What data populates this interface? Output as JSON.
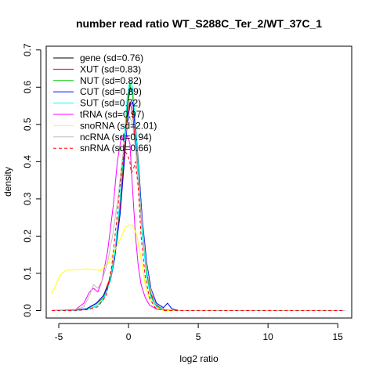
{
  "chart_data": {
    "type": "line",
    "title": "number read ratio WT_S288C_Ter_2/WT_37C_1",
    "xlabel": "log2 ratio",
    "ylabel": "density",
    "xlim": [
      -5.9,
      16.0
    ],
    "ylim": [
      -0.02,
      0.71
    ],
    "x_ticks": [
      -5,
      0,
      5,
      10,
      15
    ],
    "y_ticks": [
      0.0,
      0.1,
      0.2,
      0.3,
      0.4,
      0.5,
      0.6,
      0.7
    ],
    "grid": false,
    "legend_position": "top-left",
    "series": [
      {
        "name": "gene (sd=0.76)",
        "color": "#000000",
        "dash": "",
        "points": [
          [
            -5.5,
            0.0
          ],
          [
            -4.0,
            0.0
          ],
          [
            -3.0,
            0.003
          ],
          [
            -2.3,
            0.012
          ],
          [
            -1.8,
            0.03
          ],
          [
            -1.3,
            0.08
          ],
          [
            -1.0,
            0.14
          ],
          [
            -0.7,
            0.25
          ],
          [
            -0.4,
            0.39
          ],
          [
            -0.2,
            0.5
          ],
          [
            0.0,
            0.57
          ],
          [
            0.15,
            0.6
          ],
          [
            0.3,
            0.58
          ],
          [
            0.5,
            0.5
          ],
          [
            0.8,
            0.35
          ],
          [
            1.0,
            0.22
          ],
          [
            1.3,
            0.1
          ],
          [
            1.6,
            0.04
          ],
          [
            2.0,
            0.012
          ],
          [
            2.5,
            0.003
          ],
          [
            3.5,
            0.0
          ],
          [
            15.5,
            0.0
          ]
        ]
      },
      {
        "name": "XUT (sd=0.83)",
        "color": "#ff0000",
        "dash": "",
        "points": [
          [
            -5.5,
            0.0
          ],
          [
            -4.0,
            0.001
          ],
          [
            -3.0,
            0.005
          ],
          [
            -2.3,
            0.02
          ],
          [
            -1.8,
            0.04
          ],
          [
            -1.3,
            0.09
          ],
          [
            -1.0,
            0.15
          ],
          [
            -0.6,
            0.28
          ],
          [
            -0.3,
            0.42
          ],
          [
            -0.1,
            0.52
          ],
          [
            0.1,
            0.56
          ],
          [
            0.3,
            0.53
          ],
          [
            0.5,
            0.44
          ],
          [
            0.8,
            0.31
          ],
          [
            1.0,
            0.2
          ],
          [
            1.3,
            0.1
          ],
          [
            1.6,
            0.045
          ],
          [
            2.0,
            0.015
          ],
          [
            2.6,
            0.003
          ],
          [
            3.5,
            0.0
          ],
          [
            15.5,
            0.0
          ]
        ]
      },
      {
        "name": "NUT (sd=0.82)",
        "color": "#00cc00",
        "dash": "",
        "points": [
          [
            -5.5,
            0.0
          ],
          [
            -4.0,
            0.0
          ],
          [
            -3.0,
            0.004
          ],
          [
            -2.3,
            0.018
          ],
          [
            -1.8,
            0.035
          ],
          [
            -1.3,
            0.085
          ],
          [
            -1.0,
            0.15
          ],
          [
            -0.6,
            0.3
          ],
          [
            -0.3,
            0.45
          ],
          [
            -0.1,
            0.55
          ],
          [
            0.1,
            0.61
          ],
          [
            0.3,
            0.58
          ],
          [
            0.5,
            0.48
          ],
          [
            0.8,
            0.32
          ],
          [
            1.0,
            0.21
          ],
          [
            1.3,
            0.1
          ],
          [
            1.6,
            0.04
          ],
          [
            2.0,
            0.012
          ],
          [
            2.6,
            0.002
          ],
          [
            3.5,
            0.0
          ],
          [
            15.5,
            0.0
          ]
        ]
      },
      {
        "name": "CUT (sd=0.89)",
        "color": "#0000ff",
        "dash": "",
        "points": [
          [
            -5.5,
            0.0
          ],
          [
            -4.0,
            0.001
          ],
          [
            -3.0,
            0.005
          ],
          [
            -2.3,
            0.02
          ],
          [
            -1.8,
            0.04
          ],
          [
            -1.3,
            0.08
          ],
          [
            -1.0,
            0.14
          ],
          [
            -0.6,
            0.26
          ],
          [
            -0.3,
            0.4
          ],
          [
            -0.1,
            0.5
          ],
          [
            0.1,
            0.55
          ],
          [
            0.3,
            0.56
          ],
          [
            0.5,
            0.48
          ],
          [
            0.8,
            0.34
          ],
          [
            1.0,
            0.24
          ],
          [
            1.3,
            0.13
          ],
          [
            1.6,
            0.06
          ],
          [
            2.0,
            0.02
          ],
          [
            2.5,
            0.008
          ],
          [
            2.8,
            0.02
          ],
          [
            3.1,
            0.005
          ],
          [
            3.6,
            0.0
          ],
          [
            15.5,
            0.0
          ]
        ]
      },
      {
        "name": "SUT (sd=0.72)",
        "color": "#00ffff",
        "dash": "",
        "points": [
          [
            -5.5,
            0.0
          ],
          [
            -4.0,
            0.0
          ],
          [
            -3.0,
            0.003
          ],
          [
            -2.3,
            0.012
          ],
          [
            -1.8,
            0.03
          ],
          [
            -1.3,
            0.08
          ],
          [
            -1.0,
            0.15
          ],
          [
            -0.6,
            0.3
          ],
          [
            -0.3,
            0.46
          ],
          [
            -0.1,
            0.57
          ],
          [
            0.1,
            0.62
          ],
          [
            0.3,
            0.6
          ],
          [
            0.5,
            0.5
          ],
          [
            0.8,
            0.33
          ],
          [
            1.0,
            0.2
          ],
          [
            1.3,
            0.09
          ],
          [
            1.6,
            0.035
          ],
          [
            2.0,
            0.01
          ],
          [
            2.5,
            0.002
          ],
          [
            3.5,
            0.0
          ],
          [
            15.5,
            0.0
          ]
        ]
      },
      {
        "name": "tRNA (sd=0.97)",
        "color": "#ff00ff",
        "dash": "",
        "points": [
          [
            -5.5,
            0.0
          ],
          [
            -3.8,
            0.003
          ],
          [
            -3.2,
            0.02
          ],
          [
            -2.8,
            0.05
          ],
          [
            -2.5,
            0.06
          ],
          [
            -2.2,
            0.05
          ],
          [
            -1.9,
            0.08
          ],
          [
            -1.5,
            0.16
          ],
          [
            -1.1,
            0.28
          ],
          [
            -0.8,
            0.4
          ],
          [
            -0.5,
            0.47
          ],
          [
            -0.3,
            0.45
          ],
          [
            -0.1,
            0.47
          ],
          [
            0.1,
            0.45
          ],
          [
            0.3,
            0.32
          ],
          [
            0.5,
            0.2
          ],
          [
            0.7,
            0.12
          ],
          [
            0.9,
            0.07
          ],
          [
            1.2,
            0.035
          ],
          [
            1.5,
            0.015
          ],
          [
            2.0,
            0.004
          ],
          [
            3.0,
            0.0
          ],
          [
            15.5,
            0.0
          ]
        ]
      },
      {
        "name": "snoRNA (sd=2.01)",
        "color": "#ffff00",
        "dash": "",
        "points": [
          [
            -5.5,
            0.045
          ],
          [
            -5.2,
            0.07
          ],
          [
            -4.9,
            0.095
          ],
          [
            -4.5,
            0.108
          ],
          [
            -4.0,
            0.11
          ],
          [
            -3.5,
            0.11
          ],
          [
            -3.0,
            0.112
          ],
          [
            -2.5,
            0.11
          ],
          [
            -2.0,
            0.108
          ],
          [
            -1.5,
            0.125
          ],
          [
            -1.0,
            0.16
          ],
          [
            -0.5,
            0.2
          ],
          [
            -0.2,
            0.225
          ],
          [
            0.0,
            0.23
          ],
          [
            0.3,
            0.23
          ],
          [
            0.6,
            0.2
          ],
          [
            0.9,
            0.14
          ],
          [
            1.2,
            0.07
          ],
          [
            1.5,
            0.03
          ],
          [
            1.9,
            0.01
          ],
          [
            2.5,
            0.0
          ],
          [
            15.5,
            0.0
          ]
        ]
      },
      {
        "name": "ncRNA (sd=0.94)",
        "color": "#bebebe",
        "dash": "",
        "points": [
          [
            -5.5,
            0.0
          ],
          [
            -4.0,
            0.001
          ],
          [
            -3.2,
            0.01
          ],
          [
            -2.8,
            0.04
          ],
          [
            -2.5,
            0.07
          ],
          [
            -2.2,
            0.06
          ],
          [
            -1.9,
            0.08
          ],
          [
            -1.5,
            0.13
          ],
          [
            -1.1,
            0.21
          ],
          [
            -0.7,
            0.32
          ],
          [
            -0.4,
            0.42
          ],
          [
            -0.1,
            0.5
          ],
          [
            0.1,
            0.52
          ],
          [
            0.3,
            0.5
          ],
          [
            0.6,
            0.4
          ],
          [
            0.9,
            0.27
          ],
          [
            1.2,
            0.15
          ],
          [
            1.5,
            0.07
          ],
          [
            1.9,
            0.02
          ],
          [
            2.5,
            0.004
          ],
          [
            3.5,
            0.0
          ],
          [
            15.5,
            0.0
          ]
        ]
      },
      {
        "name": "snRNA (sd=0.66)",
        "color": "#ff0000",
        "dash": "4,3",
        "points": [
          [
            -5.5,
            0.0
          ],
          [
            -4.0,
            0.0
          ],
          [
            -3.0,
            0.002
          ],
          [
            -2.2,
            0.01
          ],
          [
            -1.6,
            0.04
          ],
          [
            -1.2,
            0.12
          ],
          [
            -0.8,
            0.26
          ],
          [
            -0.5,
            0.38
          ],
          [
            -0.3,
            0.43
          ],
          [
            -0.1,
            0.42
          ],
          [
            0.1,
            0.4
          ],
          [
            0.2,
            0.37
          ],
          [
            0.35,
            0.38
          ],
          [
            0.5,
            0.4
          ],
          [
            0.7,
            0.33
          ],
          [
            0.9,
            0.2
          ],
          [
            1.2,
            0.09
          ],
          [
            1.5,
            0.035
          ],
          [
            1.9,
            0.008
          ],
          [
            2.5,
            0.0
          ],
          [
            15.5,
            0.0
          ]
        ]
      }
    ]
  }
}
